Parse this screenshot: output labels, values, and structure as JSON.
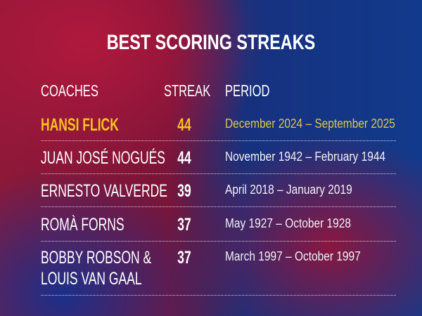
{
  "title": "BEST SCORING STREAKS",
  "headers": {
    "coaches": "COACHES",
    "streak": "STREAK",
    "period": "PERIOD"
  },
  "highlight_color": "#f6c21c",
  "rows": [
    {
      "coach": "HANSI FLICK",
      "streak": "44",
      "period": "December 2024 – September 2025",
      "highlighted": true
    },
    {
      "coach": "JUAN JOSÉ NOGUÉS",
      "streak": "44",
      "period": "November 1942 – February 1944"
    },
    {
      "coach": "ERNESTO VALVERDE",
      "streak": "39",
      "period": "April 2018 – January 2019"
    },
    {
      "coach": "ROMÀ FORNS",
      "streak": "37",
      "period": "May 1927 – October 1928"
    },
    {
      "coach_line1": "BOBBY ROBSON &",
      "coach_line2": "LOUIS VAN GAAL",
      "streak": "37",
      "period": "March 1997 – October 1997"
    }
  ]
}
